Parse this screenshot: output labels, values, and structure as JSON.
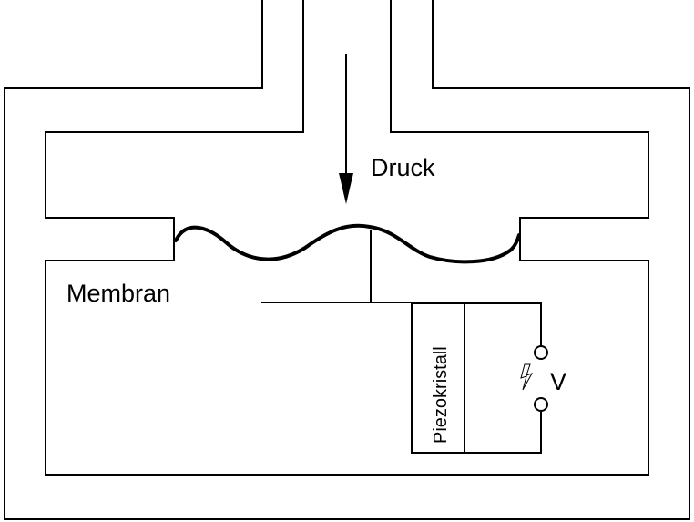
{
  "diagram": {
    "labels": {
      "pressure": "Druck",
      "membrane": "Membran",
      "crystal": "Piezokristall",
      "voltage": "V"
    },
    "icons": {
      "spark": "lightning-bolt-icon",
      "arrow": "arrow-down-icon"
    },
    "colors": {
      "stroke": "#000000",
      "background": "#ffffff"
    }
  }
}
